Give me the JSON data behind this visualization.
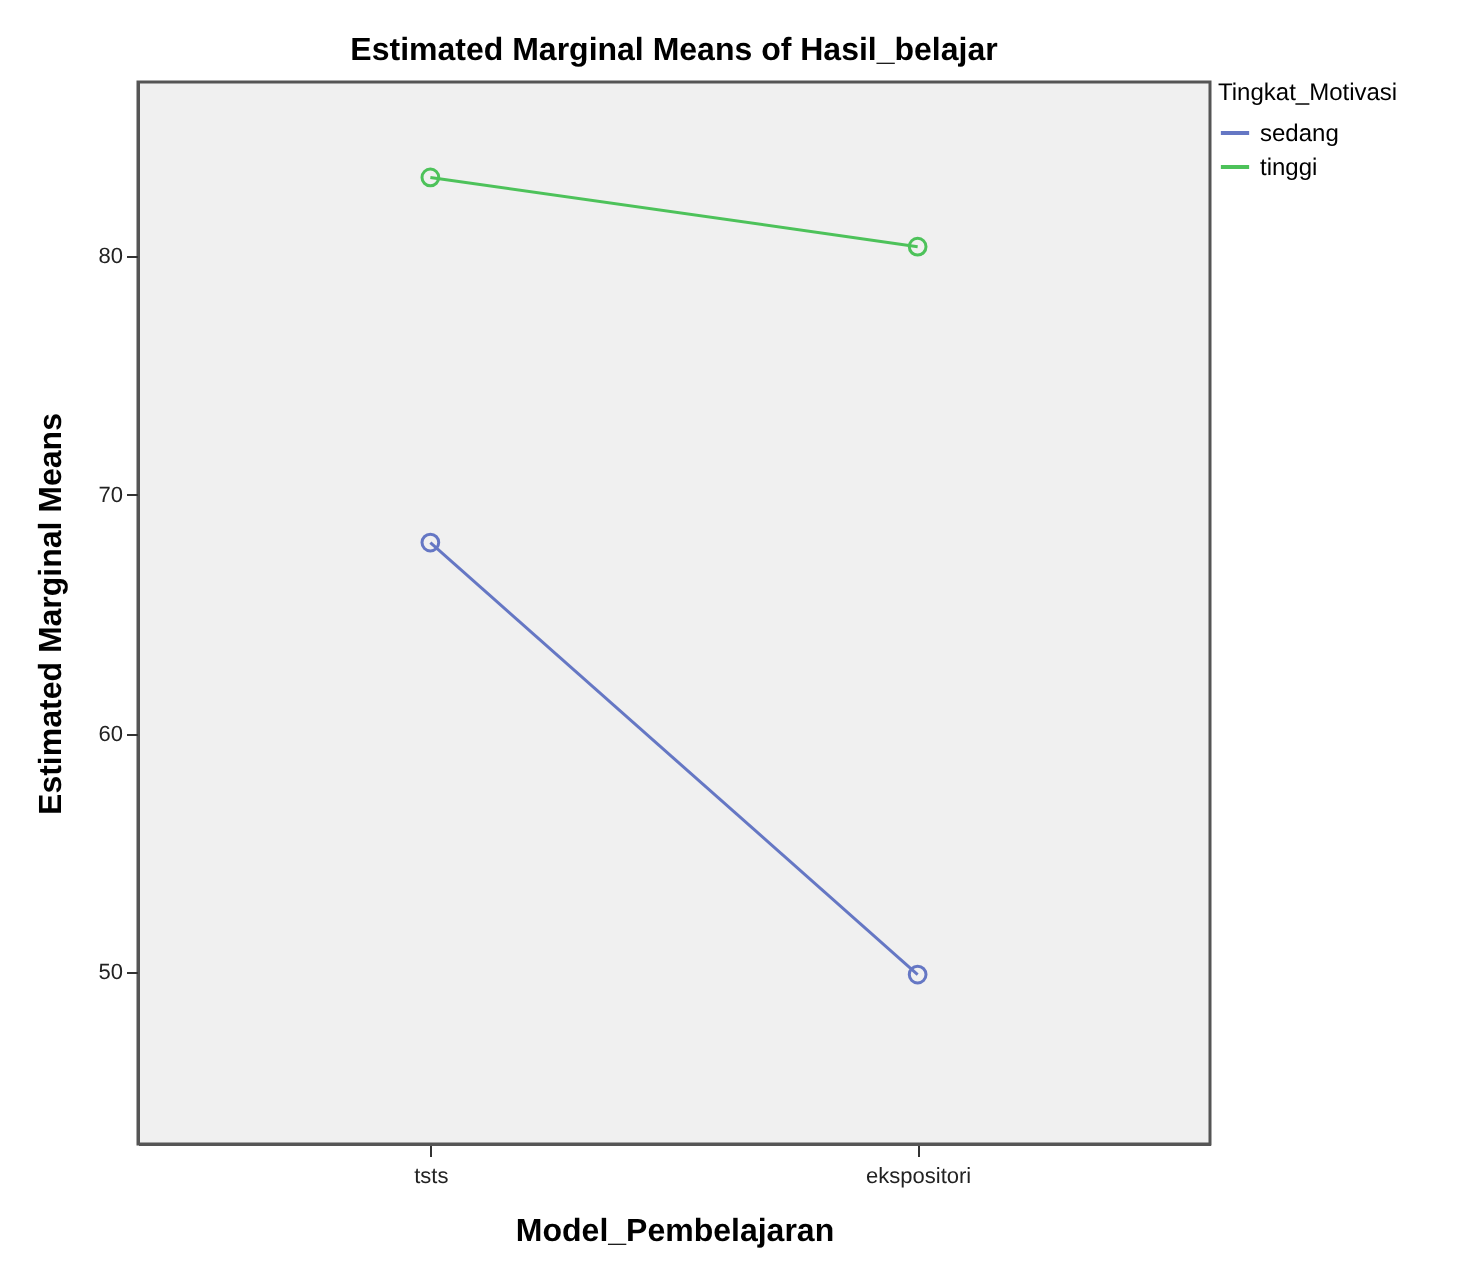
{
  "chart_data": {
    "type": "line",
    "title": "Estimated Marginal Means of Hasil_belajar",
    "xlabel": "Model_Pembelajaran",
    "ylabel": "Estimated Marginal Means",
    "legend_title": "Tingkat_Motivasi",
    "categories": [
      "tsts",
      "ekspositori"
    ],
    "series": [
      {
        "name": "sedang",
        "color": "#6577c4",
        "values": [
          68.0,
          49.9
        ]
      },
      {
        "name": "tinggi",
        "color": "#4dc25a",
        "values": [
          83.3,
          80.4
        ]
      }
    ],
    "ylim": [
      42.8,
      87.3
    ],
    "yticks": [
      50,
      60,
      70,
      80
    ],
    "grid": false,
    "legend": "right",
    "marker": "circle",
    "line_style": "solid"
  }
}
